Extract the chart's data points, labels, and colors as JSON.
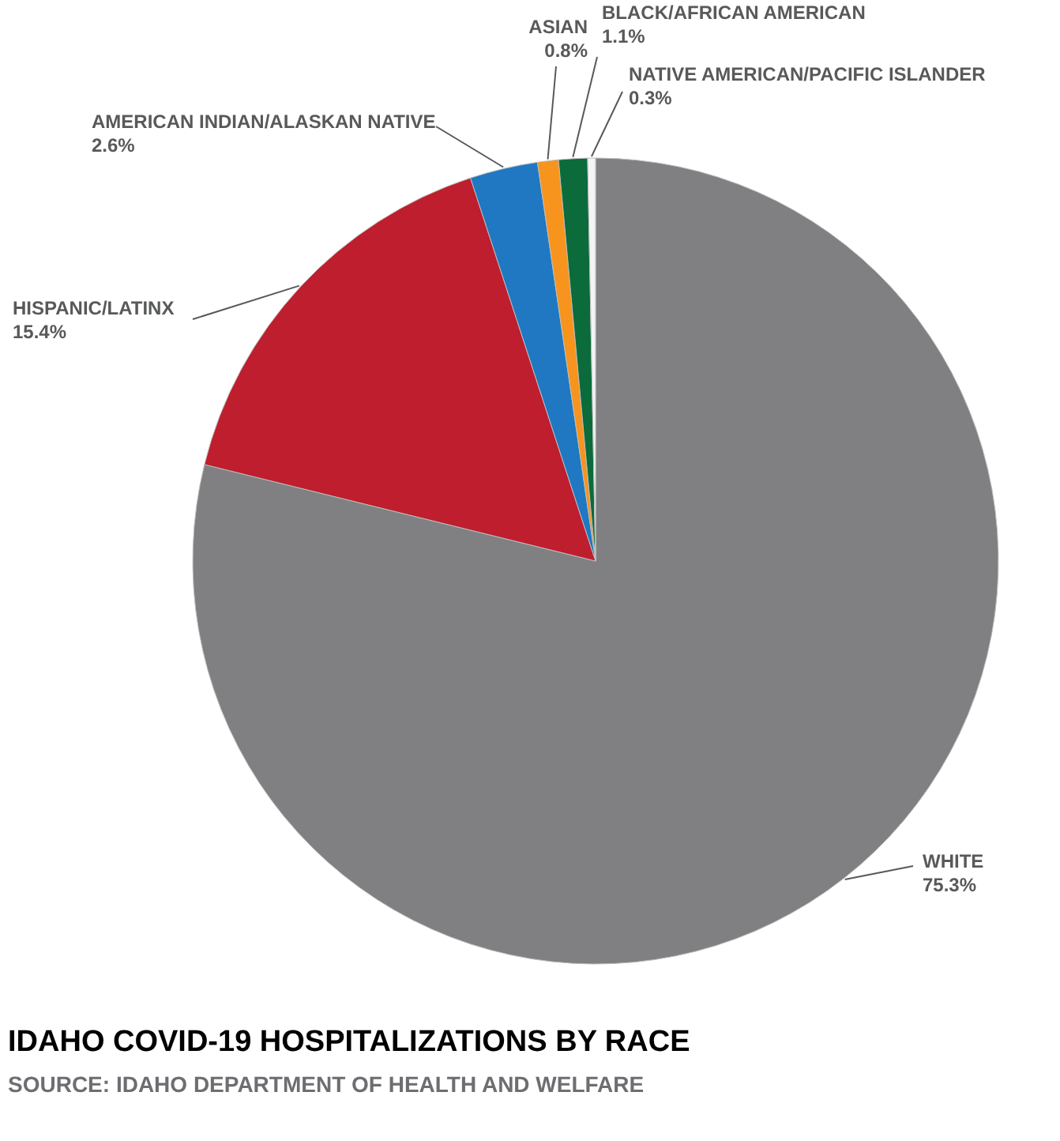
{
  "chart_data": {
    "type": "pie",
    "title": "IDAHO COVID-19 HOSPITALIZATIONS BY RACE",
    "annotations": [
      "SOURCE: IDAHO DEPARTMENT OF HEALTH AND WELFARE"
    ],
    "categories": [
      "WHITE",
      "HISPANIC/LATINX",
      "AMERICAN INDIAN/ALASKAN NATIVE",
      "ASIAN",
      "BLACK/AFRICAN AMERICAN",
      "NATIVE AMERICAN/PACIFIC ISLANDER"
    ],
    "values": [
      75.3,
      15.4,
      2.6,
      0.8,
      1.1,
      0.3
    ],
    "value_labels": [
      "75.3%",
      "15.4%",
      "2.6%",
      "0.8%",
      "1.1%",
      "0.3%"
    ],
    "colors": [
      "#808083",
      "#be1e2d",
      "#1f78c1",
      "#f7941d",
      "#0b6b3a",
      "#f4f4f4"
    ]
  }
}
